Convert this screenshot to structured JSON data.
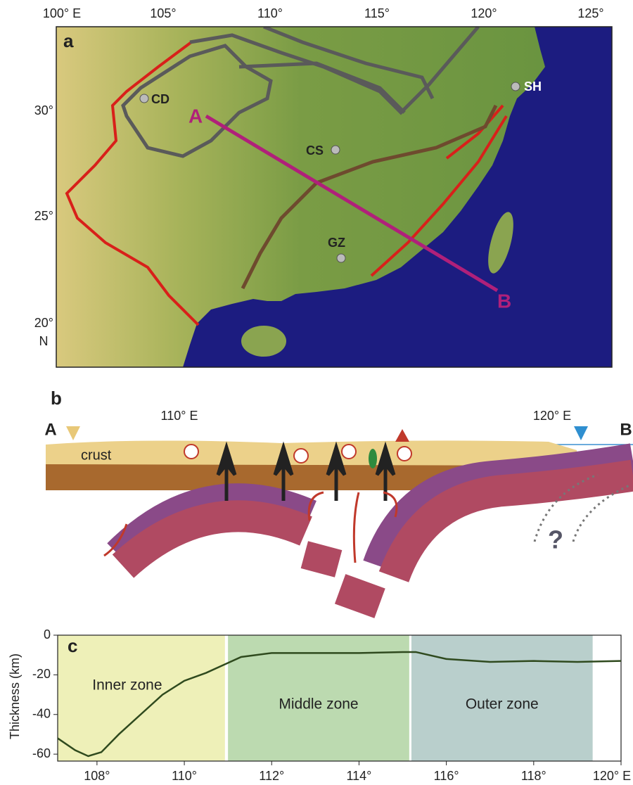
{
  "map": {
    "label": "a",
    "lon_ticks": [
      "100° E",
      "105°",
      "110°",
      "115°",
      "120°",
      "125°"
    ],
    "lat_ticks": [
      "30°",
      "25°",
      "20°"
    ],
    "lat_unit": "N",
    "cities": [
      "CD",
      "CS",
      "GZ",
      "SH"
    ],
    "profile": [
      "A",
      "B"
    ]
  },
  "section": {
    "label": "b",
    "lon_labels": [
      "110° E",
      "120° E"
    ],
    "ends": [
      "A",
      "B"
    ],
    "layer": "crust",
    "unknown": "?"
  },
  "chart_data": {
    "type": "line",
    "label": "c",
    "y_label": "Thickness (km)",
    "x": [
      107.1,
      107.5,
      107.8,
      108.1,
      108.5,
      109,
      109.5,
      110,
      110.5,
      110.9,
      111.3,
      112,
      113,
      114,
      115,
      115.3,
      116,
      117,
      118,
      119,
      120
    ],
    "values": [
      -52,
      -58,
      -61,
      -59,
      -50,
      -40,
      -30,
      -23,
      -19,
      -15,
      -11,
      -9,
      -9,
      -9,
      -8.5,
      -8.5,
      -12,
      -13.5,
      -13,
      -13.5,
      -13
    ],
    "color": "#2f4a1e",
    "xlim": [
      107.1,
      120
    ],
    "ylim": [
      -63.5,
      0
    ],
    "yticks": [
      0,
      -20,
      -40,
      -60
    ],
    "xticks": [
      {
        "value": 108,
        "label": "108°"
      },
      {
        "value": 110,
        "label": "110°"
      },
      {
        "value": 112,
        "label": "112°"
      },
      {
        "value": 114,
        "label": "114°"
      },
      {
        "value": 116,
        "label": "116°"
      },
      {
        "value": 118,
        "label": "118°"
      },
      {
        "value": 120,
        "label": "120° E"
      }
    ],
    "zones": [
      {
        "name": "Inner zone",
        "color": "#eef0b8",
        "range": [
          107.1,
          110.93
        ]
      },
      {
        "name": "Middle zone",
        "color": "#bcdab0",
        "range": [
          111.0,
          115.15
        ]
      },
      {
        "name": "Outer zone",
        "color": "#b9cfcc",
        "range": [
          115.2,
          119.35
        ]
      }
    ]
  }
}
